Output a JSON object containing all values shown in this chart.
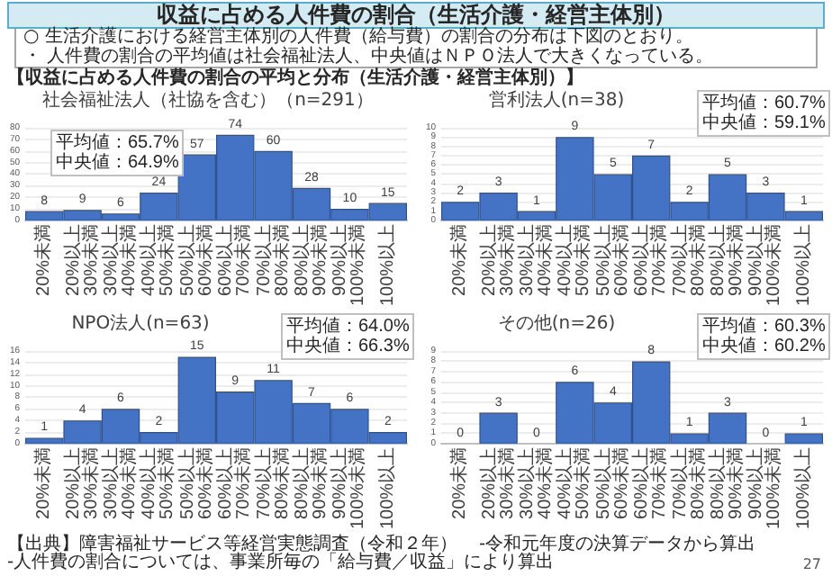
{
  "chart_data": [
    {
      "type": "other",
      "title": "収益に占める人件費の割合（生活介護・経営主体別）",
      "annotations": [
        "○ 生活介護における経営主体別の人件費（給与費）の割合の分布は下図のとおり。",
        "・ 人件費の割合の平均値は社会福祉法人、中央値はＮＰＯ法人で大きくなっている。",
        "【収益に占める人件費の割合の平均と分布（生活介護・経営主体別）】"
      ]
    },
    {
      "type": "bar",
      "title": "社会福祉法人（社協を含む）（n=291）",
      "categories": [
        "20%未満",
        "20%以上\n30%未満",
        "30%以上\n40%未満",
        "40%以上\n50%未満",
        "50%以上\n60%未満",
        "60%以上\n70%未満",
        "70%以上\n80%未満",
        "80%以上\n90%未満",
        "90%以上\n100%未満",
        "100%以上"
      ],
      "values": [
        8,
        9,
        6,
        24,
        57,
        74,
        60,
        28,
        10,
        15
      ],
      "color": "#4472c4",
      "ylim": [
        0,
        80
      ],
      "yticks": [
        0,
        10,
        20,
        30,
        40,
        50,
        60,
        70,
        80
      ],
      "grid": "y",
      "data_labels": true,
      "annotations": [
        "平均値：65.7%",
        "中央値：64.9%"
      ]
    },
    {
      "type": "bar",
      "title": "営利法人(n=38)",
      "categories": [
        "20%未満",
        "20%以上\n30%未満",
        "30%以上\n40%未満",
        "40%以上\n50%未満",
        "50%以上\n60%未満",
        "60%以上\n70%未満",
        "70%以上\n80%未満",
        "80%以上\n90%未満",
        "90%以上\n100%未満",
        "100%以上"
      ],
      "values": [
        2,
        3,
        1,
        9,
        5,
        7,
        2,
        5,
        3,
        1
      ],
      "color": "#4472c4",
      "ylim": [
        0,
        10
      ],
      "yticks": [
        0,
        1,
        2,
        3,
        4,
        5,
        6,
        7,
        8,
        9,
        10
      ],
      "grid": "y",
      "data_labels": true,
      "annotations": [
        "平均値：60.7%",
        "中央値：59.1%"
      ]
    },
    {
      "type": "bar",
      "title": "NPO法人(n=63)",
      "categories": [
        "20%未満",
        "20%以上\n30%未満",
        "30%以上\n40%未満",
        "40%以上\n50%未満",
        "50%以上\n60%未満",
        "60%以上\n70%未満",
        "70%以上\n80%未満",
        "80%以上\n90%未満",
        "90%以上\n100%未満",
        "100%以上"
      ],
      "values": [
        1,
        4,
        6,
        2,
        15,
        9,
        11,
        7,
        6,
        2
      ],
      "color": "#4472c4",
      "ylim": [
        0,
        16
      ],
      "yticks": [
        0,
        2,
        4,
        6,
        8,
        10,
        12,
        14,
        16
      ],
      "grid": "y",
      "data_labels": true,
      "annotations": [
        "平均値：64.0%",
        "中央値：66.3%"
      ]
    },
    {
      "type": "bar",
      "title": "その他(n=26)",
      "categories": [
        "20%未満",
        "20%以上\n30%未満",
        "30%以上\n40%未満",
        "40%以上\n50%未満",
        "50%以上\n60%未満",
        "60%以上\n70%未満",
        "70%以上\n80%未満",
        "80%以上\n90%未満",
        "90%以上\n100%未満",
        "100%以上"
      ],
      "values": [
        0,
        3,
        0,
        6,
        4,
        8,
        1,
        3,
        0,
        1
      ],
      "color": "#4472c4",
      "ylim": [
        0,
        9
      ],
      "yticks": [
        0,
        1,
        2,
        3,
        4,
        5,
        6,
        7,
        8,
        9
      ],
      "grid": "y",
      "data_labels": true,
      "annotations": [
        "平均値：60.3%",
        "中央値：60.2%"
      ]
    },
    {
      "type": "other",
      "annotations": [
        "【出典】障害福祉サービス等経営実態調査（令和２年）",
        "-令和元年度の決算データから算出",
        "-人件費の割合については、事業所毎の「給与費／収益」により算出",
        "27"
      ]
    }
  ]
}
